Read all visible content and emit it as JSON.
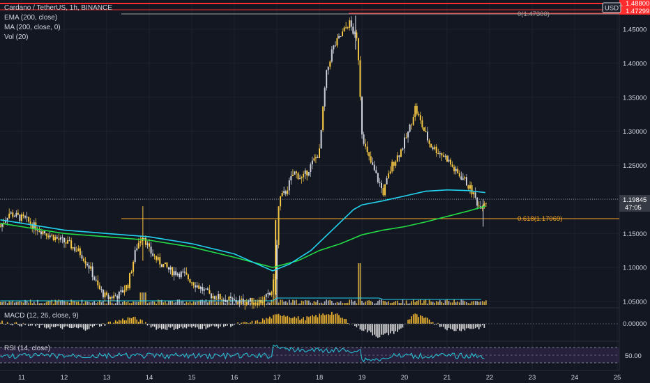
{
  "header": {
    "symbol_line": "Cardano / TetherUS, 1h, BINANCE",
    "ema_line": "EMA (200, close)",
    "ma_line": "MA (200, close, 0)",
    "vol_line": "Vol (20)",
    "currency_badge": "USDT"
  },
  "panes": {
    "macd_label": "MACD (12, 26, close, 9)",
    "macd_axis": "0.00000",
    "rsi_label": "RSI (14, close)",
    "rsi_axis": "50.00"
  },
  "price_axis": {
    "ticks": [
      "1.45000",
      "1.40000",
      "1.35000",
      "1.30000",
      "1.25000",
      "1.20000",
      "1.15000",
      "1.10000",
      "1.05000"
    ],
    "current_price": "1.19845",
    "countdown": "47:05",
    "top_tag_1": "1.48800",
    "top_tag_2": "1.47299"
  },
  "fib": {
    "top_label": "0(1.47300)",
    "level_label": "0.618(1.17069)",
    "color": "#f5a623"
  },
  "time_axis": [
    "11",
    "12",
    "13",
    "14",
    "15",
    "16",
    "17",
    "18",
    "19",
    "20",
    "21",
    "22",
    "23",
    "24",
    "25"
  ],
  "colors": {
    "background": "#131722",
    "candle": "#f7c844",
    "candle_alt": "#d1d4dc",
    "ema": "#22d3ee",
    "ma": "#22dd44",
    "macd_up": "#f5b82e",
    "macd_down": "#e0e0e0",
    "rsi": "#26c6da",
    "rsi_band": "#3b2a55",
    "red_line": "#ff2d2d"
  },
  "chart_data": {
    "type": "line",
    "title": "Cardano / TetherUS, 1h, BINANCE",
    "xlabel": "",
    "ylabel": "",
    "ylim": [
      1.04,
      1.49
    ],
    "x": [
      "11",
      "12",
      "13",
      "14",
      "15",
      "16",
      "17",
      "18",
      "19",
      "20",
      "21",
      "22"
    ],
    "series": [
      {
        "name": "Price",
        "values": [
          1.17,
          1.14,
          1.07,
          1.15,
          1.08,
          1.05,
          1.08,
          1.42,
          1.44,
          1.32,
          1.25,
          1.198
        ]
      },
      {
        "name": "EMA (200, close)",
        "values": [
          1.17,
          1.16,
          1.155,
          1.15,
          1.145,
          1.14,
          1.1,
          1.13,
          1.19,
          1.205,
          1.215,
          1.21
        ]
      },
      {
        "name": "MA (200, close, 0)",
        "values": [
          1.165,
          1.155,
          1.15,
          1.145,
          1.14,
          1.125,
          1.1,
          1.125,
          1.15,
          1.165,
          1.185,
          1.19
        ]
      }
    ],
    "annotations": [
      "0(1.47300)",
      "0.618(1.17069)"
    ]
  }
}
